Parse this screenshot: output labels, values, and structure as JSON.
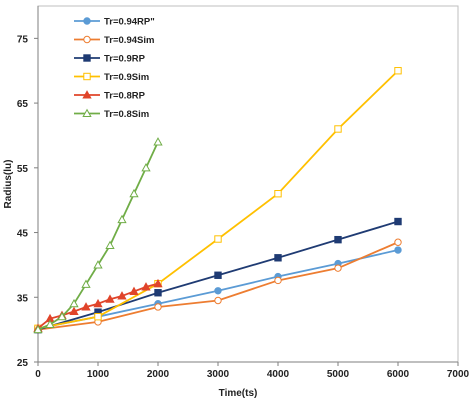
{
  "chart_data": {
    "type": "line",
    "xlabel": "Time(ts)",
    "ylabel": "Radius(lu)",
    "xlim": [
      0,
      7000
    ],
    "ylim": [
      25,
      80
    ],
    "xticks": [
      0,
      1000,
      2000,
      3000,
      4000,
      5000,
      6000,
      7000
    ],
    "yticks": [
      25,
      35,
      45,
      55,
      65,
      75
    ],
    "grid": false,
    "legend_position": "top-left",
    "series": [
      {
        "name": "Tr=0.94RP\"",
        "color": "#5b9bd5",
        "marker": "circle-filled",
        "x": [
          0,
          1000,
          2000,
          3000,
          4000,
          5000,
          6000
        ],
        "y": [
          30.2,
          32,
          34,
          36,
          38.2,
          40.2,
          42.3
        ]
      },
      {
        "name": "Tr=0.94Sim",
        "color": "#ed7d31",
        "marker": "circle-open",
        "x": [
          0,
          1000,
          2000,
          3000,
          4000,
          5000,
          6000
        ],
        "y": [
          30,
          31.2,
          33.5,
          34.5,
          37.6,
          39.5,
          43.5
        ]
      },
      {
        "name": "Tr=0.9RP",
        "color": "#1f3b73",
        "marker": "square-filled",
        "x": [
          0,
          1000,
          2000,
          3000,
          4000,
          5000,
          6000
        ],
        "y": [
          30,
          32.7,
          35.7,
          38.4,
          41.1,
          43.9,
          46.7
        ]
      },
      {
        "name": "Tr=0.9Sim",
        "color": "#ffc000",
        "marker": "square-open",
        "x": [
          0,
          1000,
          2000,
          3000,
          4000,
          5000,
          6000
        ],
        "y": [
          30.2,
          32,
          37.1,
          44,
          51,
          61,
          70
        ]
      },
      {
        "name": "Tr=0.8RP",
        "color": "#e0442a",
        "marker": "triangle-filled",
        "x": [
          0,
          200,
          400,
          600,
          800,
          1000,
          1200,
          1400,
          1600,
          1800,
          2000
        ],
        "y": [
          30.2,
          31.7,
          32.2,
          32.8,
          33.5,
          34,
          34.7,
          35.2,
          35.9,
          36.6,
          37.1
        ]
      },
      {
        "name": "Tr=0.8Sim",
        "color": "#70ad47",
        "marker": "triangle-open",
        "x": [
          0,
          200,
          400,
          600,
          800,
          1000,
          1200,
          1400,
          1600,
          1800,
          2000
        ],
        "y": [
          30,
          30.8,
          32,
          34,
          37,
          40,
          43,
          47,
          51,
          55,
          59
        ]
      }
    ]
  }
}
